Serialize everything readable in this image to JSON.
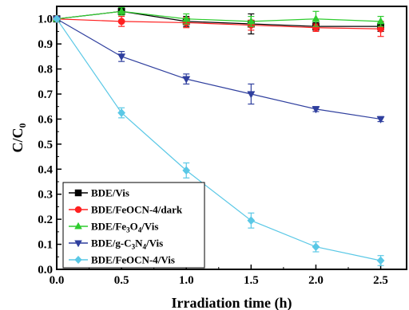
{
  "chart_data": {
    "type": "line",
    "xlabel": "Irradiation time (h)",
    "ylabel": {
      "main": "C/C",
      "sub": "0"
    },
    "xlim": [
      0,
      2.7
    ],
    "ylim": [
      0,
      1.05
    ],
    "xticks": [
      "0.0",
      "0.5",
      "1.0",
      "1.5",
      "2.0",
      "2.5"
    ],
    "yticks": [
      "0.0",
      "0.1",
      "0.2",
      "0.3",
      "0.4",
      "0.5",
      "0.6",
      "0.7",
      "0.8",
      "0.9",
      "1.0"
    ],
    "x": [
      0,
      0.5,
      1.0,
      1.5,
      2.0,
      2.5
    ],
    "grid": false,
    "legend_position": "bottom-left",
    "series": [
      {
        "name": "BDE/Vis",
        "legend": [
          [
            "BDE/Vis",
            ""
          ]
        ],
        "color": "#000000",
        "marker": "square",
        "values": [
          1.0,
          1.03,
          0.99,
          0.98,
          0.97,
          0.97
        ],
        "errors": [
          0,
          0.012,
          0.02,
          0.04,
          0.015,
          0.02
        ]
      },
      {
        "name": "BDE/FeOCN-4/dark",
        "legend": [
          [
            "BDE/FeOCN-4/dark",
            ""
          ]
        ],
        "color": "#ff2020",
        "marker": "circle",
        "values": [
          1.0,
          0.99,
          0.985,
          0.975,
          0.965,
          0.96
        ],
        "errors": [
          0,
          0.02,
          0.02,
          0.02,
          0.015,
          0.03
        ]
      },
      {
        "name": "BDE/Fe3O4/Vis",
        "legend": [
          [
            "BDE/Fe",
            ""
          ],
          [
            "3",
            "sub"
          ],
          [
            "O",
            ""
          ],
          [
            "4",
            "sub"
          ],
          [
            "/Vis",
            ""
          ]
        ],
        "color": "#2ecc2e",
        "marker": "triangle-up",
        "values": [
          1.0,
          1.03,
          1.0,
          0.99,
          1.0,
          0.99
        ],
        "errors": [
          0,
          0.015,
          0.02,
          0.02,
          0.03,
          0.02
        ]
      },
      {
        "name": "BDE/g-C3N4/Vis",
        "legend": [
          [
            "BDE/g-C",
            ""
          ],
          [
            "3",
            "sub"
          ],
          [
            "N",
            ""
          ],
          [
            "4",
            "sub"
          ],
          [
            "/Vis",
            ""
          ]
        ],
        "color": "#2f3f9e",
        "marker": "triangle-down",
        "values": [
          1.0,
          0.85,
          0.76,
          0.7,
          0.64,
          0.6
        ],
        "errors": [
          0,
          0.02,
          0.02,
          0.04,
          0.01,
          0.01
        ]
      },
      {
        "name": "BDE/FeOCN-4/Vis",
        "legend": [
          [
            "BDE/FeOCN-4/Vis",
            ""
          ]
        ],
        "color": "#5ac8e6",
        "marker": "diamond",
        "values": [
          1.0,
          0.625,
          0.395,
          0.195,
          0.09,
          0.035
        ],
        "errors": [
          0,
          0.02,
          0.03,
          0.03,
          0.02,
          0.02
        ]
      }
    ]
  }
}
